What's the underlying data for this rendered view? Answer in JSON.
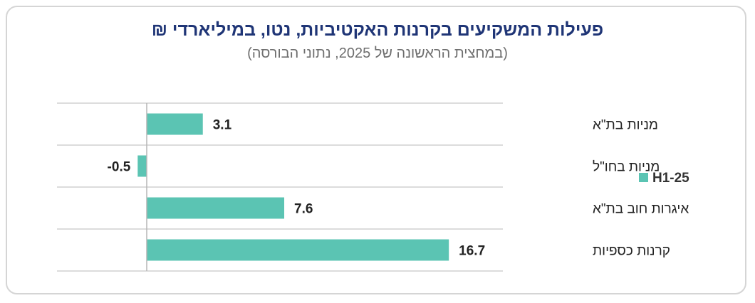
{
  "title": "פעילות המשקיעים בקרנות האקטיביות, נטו, במיליארדי ₪",
  "subtitle": "(במחצית הראשונה של 2025, נתוני הבורסה)",
  "colors": {
    "bar": "#5bc4b3",
    "gridline": "#c8c8c8",
    "axis": "#b5b5b5"
  },
  "chart_data": {
    "type": "bar",
    "orientation": "horizontal",
    "categories": [
      "מניות בת\"א",
      "מניות בחו\"ל",
      "איגרות חוב בת\"א",
      "קרנות כספיות"
    ],
    "series": [
      {
        "name": "H1-25",
        "values": [
          3.1,
          -0.5,
          7.6,
          16.7
        ]
      }
    ],
    "value_labels": [
      "3.1",
      "-0.5",
      "7.6",
      "16.7"
    ],
    "xlim": [
      -5,
      20
    ],
    "legend": "right",
    "grid": "horizontal separators"
  }
}
